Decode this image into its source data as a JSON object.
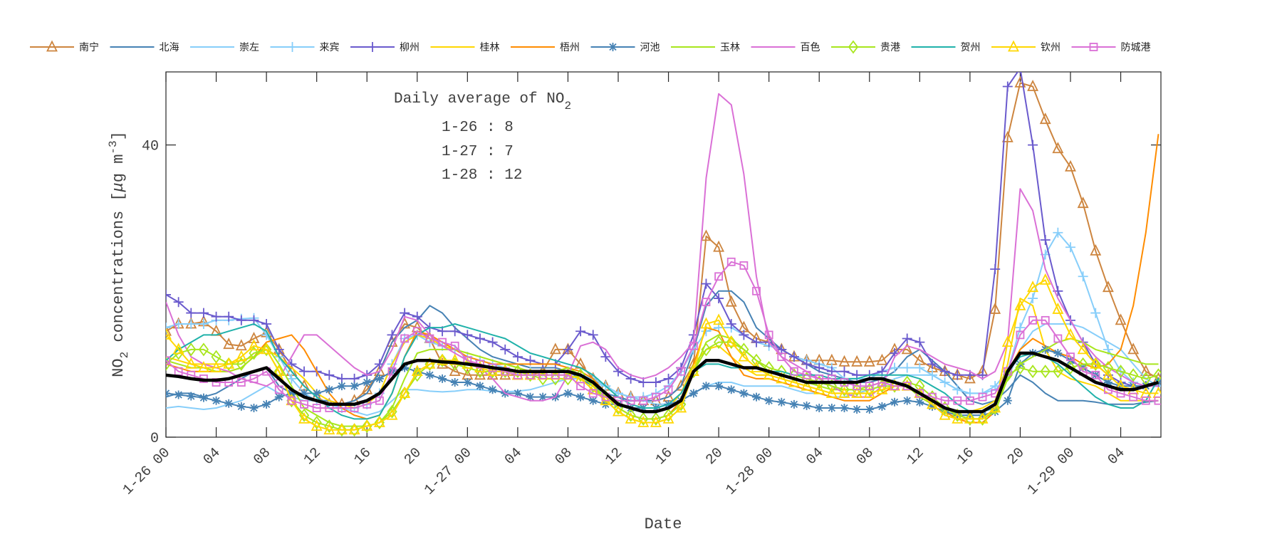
{
  "chart_data": {
    "type": "line",
    "xlabel": "Date",
    "ylabel_parts": [
      "NO",
      "2",
      " concentrations [",
      "μ",
      "g m",
      "-3",
      "]"
    ],
    "ylim": [
      0,
      50
    ],
    "y_ticks": [
      0,
      40
    ],
    "x_start": "1-26 00",
    "x_end": "1-29 07",
    "x_step": "1 hour",
    "x_tick_labels": [
      "1-26 00",
      "04",
      "08",
      "12",
      "16",
      "20",
      "1-27 00",
      "04",
      "08",
      "12",
      "16",
      "20",
      "1-28 00",
      "04",
      "08",
      "12",
      "16",
      "20",
      "1-29 00",
      "04"
    ],
    "grid": false,
    "legend_placement": "top, horizontal, outside",
    "annotation": {
      "title_prefix": "Daily average of NO",
      "title_sub": "2",
      "lines": [
        "1-26 : 8",
        "1-27 : 7",
        "1-28 : 12"
      ]
    },
    "series": [
      {
        "name": "南宁",
        "color": "#CD853F",
        "marker": "triangle",
        "values": [
          14.5,
          15.5,
          15.5,
          15.8,
          14.5,
          12.7,
          12.5,
          13.5,
          14.3,
          12,
          9,
          7,
          5.5,
          4.5,
          4.5,
          5,
          6.5,
          9,
          13,
          15.5,
          15,
          13.5,
          10,
          9,
          8.5,
          8.5,
          8.5,
          8.5,
          8.5,
          8.5,
          9,
          12,
          12,
          10,
          8,
          7,
          6,
          5.5,
          5,
          5,
          5.5,
          7,
          10,
          27.5,
          26,
          18.5,
          15,
          13.5,
          13,
          12,
          11,
          10.5,
          10.5,
          10.5,
          10.3,
          10.3,
          10.3,
          10.5,
          12,
          12,
          10.5,
          9.5,
          9,
          8.5,
          8,
          9,
          17.5,
          41,
          48.5,
          48,
          43.5,
          39.5,
          37,
          32,
          25.5,
          20.5,
          16,
          12,
          9,
          8
        ]
      },
      {
        "name": "北海",
        "color": "#4682B4",
        "marker": "none",
        "values": [
          5.5,
          6,
          6,
          5.5,
          6,
          7,
          8,
          9,
          9.5,
          7,
          6,
          5.5,
          5,
          5,
          4.5,
          5,
          6,
          9,
          13,
          15,
          16,
          18,
          17,
          15,
          13.5,
          12,
          11,
          10.5,
          10,
          9.5,
          9.5,
          9.5,
          9,
          8,
          7,
          6,
          5.5,
          5,
          5,
          5,
          5.5,
          7,
          12,
          18,
          20,
          20,
          18.5,
          15,
          13.5,
          12,
          11,
          10,
          9,
          8.5,
          8,
          7.5,
          7.5,
          8,
          9,
          11,
          12,
          10.5,
          9,
          7,
          5,
          4.5,
          5,
          6.5,
          8.5,
          7.5,
          6,
          5,
          5,
          5,
          4.8,
          4.5,
          4.5,
          4.5,
          4.8,
          5
        ]
      },
      {
        "name": "崇左",
        "color": "#87CEFA",
        "marker": "none",
        "values": [
          4,
          4.2,
          4,
          3.8,
          4,
          4.5,
          5,
          6,
          7,
          6,
          5.5,
          5,
          5,
          4.5,
          4,
          3.5,
          3,
          3.5,
          5,
          6.5,
          6.5,
          6.3,
          6.2,
          6.3,
          6.5,
          6.5,
          6.3,
          6.2,
          6.3,
          6.5,
          7,
          7.5,
          8,
          8,
          7.5,
          7,
          6,
          5.5,
          5,
          4.5,
          4.5,
          5,
          6,
          7,
          7.5,
          7.5,
          7,
          7,
          7,
          7,
          6.5,
          6,
          6,
          5.5,
          5.5,
          6,
          6.5,
          7,
          8,
          8.5,
          8.5,
          8.5,
          7.5,
          6.5,
          6,
          6,
          6.5,
          8,
          12,
          14.5,
          15.5,
          15.5,
          15.5,
          15,
          14,
          13,
          12,
          10,
          8,
          7
        ]
      },
      {
        "name": "来宾",
        "color": "#87CEFA",
        "marker": "plus",
        "values": [
          15,
          15.5,
          15.5,
          15.5,
          16,
          16,
          16.2,
          16.3,
          14,
          11,
          8,
          6,
          5,
          4.5,
          4,
          4,
          4.5,
          6,
          10,
          13.5,
          14,
          13,
          12.5,
          12,
          11,
          10.5,
          10,
          9.5,
          9,
          9,
          9,
          9,
          9,
          8.5,
          8,
          7,
          6,
          5.5,
          5.5,
          6,
          7,
          9,
          12,
          14.5,
          15,
          15,
          14,
          13,
          12.5,
          12,
          11,
          10.5,
          10,
          9.5,
          8,
          8,
          8,
          9,
          9.5,
          9.5,
          9.5,
          8.5,
          7.5,
          6.5,
          6,
          6,
          7,
          9,
          15,
          19,
          25,
          28,
          26,
          22,
          17,
          12,
          9,
          7.5,
          7,
          7
        ]
      },
      {
        "name": "柳州",
        "color": "#6A5ACD",
        "marker": "plus",
        "values": [
          19.5,
          18.5,
          17,
          17,
          16.5,
          16.5,
          16,
          16,
          15.5,
          12,
          10,
          9,
          9,
          8.5,
          8,
          8,
          8.5,
          10,
          14,
          17,
          16.5,
          15,
          14.5,
          14.5,
          14,
          13.5,
          13,
          12,
          11,
          10.5,
          10,
          10,
          12,
          14.5,
          14,
          11,
          9,
          8,
          7.5,
          7.5,
          8,
          9.5,
          14,
          21,
          19,
          15.5,
          14,
          13,
          13,
          12,
          11,
          10,
          9.5,
          9,
          9,
          8.5,
          8.5,
          9,
          11.5,
          13.5,
          13,
          10,
          9,
          8.5,
          8.5,
          8.5,
          23,
          48,
          50.5,
          40,
          27,
          20,
          16,
          13,
          10,
          8.5,
          7.5,
          7,
          7,
          7.5
        ]
      },
      {
        "name": "桂林",
        "color": "#FFD700",
        "marker": "none",
        "values": [
          11,
          10.5,
          10,
          10,
          10,
          10,
          10.5,
          11,
          12,
          11,
          9.5,
          8,
          6,
          5,
          4.5,
          4,
          4.5,
          6,
          10,
          13,
          14,
          13.5,
          12.5,
          12,
          11.5,
          11,
          10.5,
          10,
          9.5,
          9,
          9,
          9,
          9,
          8.5,
          7.5,
          6,
          4.5,
          4,
          3.5,
          3.5,
          4,
          6,
          10,
          12,
          12.5,
          11,
          9.5,
          8.5,
          8.5,
          8,
          7.5,
          7,
          6.5,
          6,
          6,
          6,
          6,
          6.5,
          7,
          7,
          6,
          5,
          4,
          3.5,
          3.5,
          4,
          5,
          10,
          19,
          18,
          12,
          9,
          8,
          7.5,
          7,
          6,
          5,
          5,
          5,
          5
        ]
      },
      {
        "name": "梧州",
        "color": "#FF8C00",
        "marker": "none",
        "values": [
          10,
          9.5,
          9,
          9,
          9,
          9,
          9.5,
          11,
          13,
          13.5,
          14,
          12,
          9,
          6,
          4,
          3,
          2.5,
          3,
          6,
          11,
          14.5,
          14,
          13,
          12,
          11,
          10.5,
          10,
          10,
          10,
          10,
          10,
          10,
          9.5,
          9,
          8,
          6,
          4,
          3,
          2.5,
          2.5,
          3,
          5,
          10,
          15,
          14.5,
          11,
          8.5,
          8,
          8,
          7.5,
          7,
          6.5,
          6,
          5.5,
          5,
          5,
          5,
          6,
          7,
          7,
          6,
          5,
          3.5,
          2.5,
          2,
          2,
          3.5,
          9,
          12,
          13.5,
          12.5,
          11.5,
          11,
          10,
          9.5,
          10,
          12,
          18,
          28,
          41.5
        ]
      },
      {
        "name": "河池",
        "color": "#4682B4",
        "marker": "star",
        "values": [
          6,
          5.8,
          5.6,
          5.4,
          5,
          4.6,
          4.2,
          4,
          4.5,
          5.5,
          6,
          6,
          6,
          6.5,
          7,
          7,
          7.5,
          8,
          9,
          9.5,
          9,
          8.5,
          8,
          7.5,
          7.5,
          7,
          6.5,
          6,
          6,
          5.5,
          5.5,
          5.5,
          6,
          5.5,
          5,
          4.5,
          4.5,
          4,
          4,
          4,
          4.5,
          5,
          6,
          7,
          7,
          6.5,
          6,
          5.5,
          5,
          4.8,
          4.5,
          4.3,
          4,
          4,
          4,
          3.8,
          3.8,
          4.2,
          4.8,
          5,
          4.8,
          4.2,
          3.5,
          3,
          3,
          3,
          3.5,
          5,
          10,
          11.5,
          12,
          11.5,
          10.5,
          9.5,
          8.5,
          7.5,
          7,
          7,
          7,
          7.5
        ]
      },
      {
        "name": "玉林",
        "color": "#A8E61D",
        "marker": "none",
        "values": [
          10.5,
          10,
          9.5,
          9.5,
          9,
          9,
          9.5,
          11,
          12.5,
          10,
          7,
          4,
          3,
          2,
          1.5,
          1.5,
          1.5,
          2,
          4,
          8,
          11.5,
          12,
          12,
          12,
          11.5,
          11,
          10.5,
          10,
          9.5,
          9,
          9,
          9,
          9.5,
          8.5,
          7,
          5,
          3.5,
          2.5,
          2,
          2,
          2.5,
          4,
          9,
          13,
          14,
          13.5,
          12,
          10.5,
          9,
          8.5,
          8,
          7.5,
          7,
          6.5,
          6.5,
          6.5,
          7,
          7.5,
          7.5,
          7,
          5.5,
          4.5,
          3,
          2.5,
          2.5,
          2.5,
          3.5,
          8,
          10,
          11,
          12,
          13,
          13.5,
          13,
          12,
          11.5,
          11,
          10.5,
          10,
          10
        ]
      },
      {
        "name": "百色",
        "color": "#DA70D6",
        "marker": "none",
        "values": [
          18.5,
          14,
          11,
          10,
          9.5,
          9,
          8,
          7.5,
          7,
          8,
          11,
          14,
          14,
          12.5,
          11,
          9.5,
          8.5,
          9,
          12,
          16.5,
          16,
          14,
          12.5,
          11.5,
          10.5,
          9.5,
          8,
          6,
          5.5,
          5,
          5,
          5.5,
          8.5,
          12.5,
          13,
          12,
          9.5,
          8.5,
          8,
          8.5,
          9.5,
          11,
          13,
          35.5,
          47,
          45.5,
          36,
          22,
          13,
          11,
          10,
          9,
          8,
          7,
          6,
          5.5,
          5.5,
          7,
          11,
          12.5,
          12,
          11,
          10,
          9.5,
          9,
          8,
          9,
          13,
          34,
          31,
          23,
          19,
          16,
          13,
          11,
          9.5,
          8.5,
          7.5,
          7,
          7
        ]
      },
      {
        "name": "贵港",
        "color": "#A8E61D",
        "marker": "diamond",
        "values": [
          10,
          11.5,
          12,
          12,
          11,
          10,
          10,
          11.5,
          12,
          9,
          5,
          3,
          2,
          1.5,
          1,
          1,
          1.5,
          2,
          3.5,
          6,
          8.5,
          10,
          10.5,
          10,
          9.5,
          9,
          9,
          9,
          9,
          8.5,
          8,
          8,
          8,
          8.5,
          7,
          5.5,
          4,
          3,
          2.5,
          2.5,
          3,
          4.5,
          9,
          12,
          13,
          13,
          12,
          10.5,
          9.5,
          9,
          8.5,
          8,
          7.5,
          7,
          6.5,
          6.5,
          6.5,
          7,
          7,
          7.5,
          7,
          5.5,
          4,
          3,
          2.5,
          2.5,
          4,
          8.5,
          9.5,
          9,
          9,
          9,
          9.5,
          10,
          10,
          9.5,
          9,
          8.5,
          8,
          8.5
        ]
      },
      {
        "name": "贺州",
        "color": "#20B2AA",
        "marker": "none",
        "values": [
          10.5,
          12,
          13,
          14,
          14,
          14.5,
          15,
          15.5,
          14.5,
          11,
          9,
          7,
          5.5,
          4,
          3,
          2.5,
          2.5,
          3,
          6,
          11,
          14,
          15,
          15,
          15.5,
          15,
          14.5,
          14,
          13.5,
          12.5,
          11.5,
          11,
          10.5,
          10,
          9.5,
          8.5,
          7,
          5.5,
          4.5,
          4,
          4,
          4.5,
          6,
          9,
          10,
          10,
          9.5,
          9.5,
          9.5,
          9,
          9,
          8.5,
          8.5,
          8.5,
          8,
          8,
          8,
          8.5,
          8.5,
          8.5,
          8.5,
          8,
          7,
          6,
          4.5,
          3.5,
          3.5,
          4,
          9,
          11,
          11.5,
          11,
          10,
          8.5,
          7,
          5.5,
          4.5,
          4,
          4,
          5,
          8
        ]
      },
      {
        "name": "钦州",
        "color": "#FFD700",
        "marker": "triangle",
        "values": [
          14,
          12,
          10,
          9.5,
          9.5,
          10,
          11,
          12.5,
          12,
          9,
          5,
          2.5,
          1.5,
          1,
          1,
          1,
          1.5,
          2,
          3,
          6,
          9,
          10,
          10.5,
          10.5,
          10,
          9.5,
          9,
          9,
          8.5,
          8.5,
          8.5,
          8.5,
          8.5,
          8,
          6.5,
          5,
          3.5,
          2.5,
          2,
          2,
          2.5,
          4,
          9,
          15.5,
          16,
          13,
          11,
          9.5,
          8.5,
          8,
          7.5,
          7,
          6.5,
          6,
          6,
          6,
          6,
          6.5,
          7,
          7,
          6,
          4.5,
          3,
          2.5,
          2.5,
          2.5,
          4,
          13,
          18,
          20.5,
          21.5,
          17.5,
          14,
          12,
          10,
          8.5,
          7,
          6.5,
          6,
          6
        ]
      },
      {
        "name": "防城港",
        "color": "#DA70D6",
        "marker": "square",
        "values": [
          10.5,
          9,
          8.5,
          8,
          7.5,
          7.5,
          7.5,
          8,
          9,
          6.5,
          5,
          4.5,
          4,
          4,
          4,
          4,
          4.5,
          5,
          9,
          13.5,
          14.5,
          13.5,
          13,
          12.5,
          10.5,
          10,
          9.5,
          9,
          8.5,
          8.5,
          8.5,
          8.5,
          8.5,
          7,
          6,
          5.5,
          5,
          5,
          5,
          5.5,
          6.5,
          9,
          12.5,
          18.5,
          22,
          24,
          23.5,
          20,
          14,
          11,
          9,
          8.5,
          8,
          8,
          7.5,
          7,
          7,
          7.5,
          7,
          7,
          6,
          5.5,
          5,
          5,
          5,
          5.5,
          6,
          9,
          14,
          16,
          16,
          13.5,
          11,
          9,
          8.5,
          6.5,
          6,
          5.5,
          5,
          5
        ]
      },
      {
        "color": "#000000",
        "marker": "none",
        "values": [
          8.5,
          8.3,
          8,
          7.8,
          7.8,
          8,
          8.5,
          9,
          9.5,
          8,
          6.5,
          5.5,
          5,
          4.5,
          4.5,
          4.5,
          5,
          6,
          8,
          10,
          10.5,
          10.5,
          10.3,
          10.2,
          10,
          9.8,
          9.5,
          9.3,
          9,
          9,
          9,
          9,
          9,
          8.5,
          7.5,
          6,
          4.5,
          4,
          3.5,
          3.5,
          4,
          5,
          9,
          10.5,
          10.5,
          10,
          9.5,
          9.5,
          9,
          8.5,
          8,
          7.5,
          7.5,
          7.5,
          7.5,
          7.5,
          8,
          8,
          7.5,
          7,
          6,
          5,
          4,
          3.5,
          3.5,
          3.5,
          4.5,
          9,
          11.5,
          11.5,
          11,
          10.5,
          9.5,
          8.5,
          7.5,
          7,
          6.5,
          6.5,
          7,
          7.5
        ]
      }
    ]
  }
}
